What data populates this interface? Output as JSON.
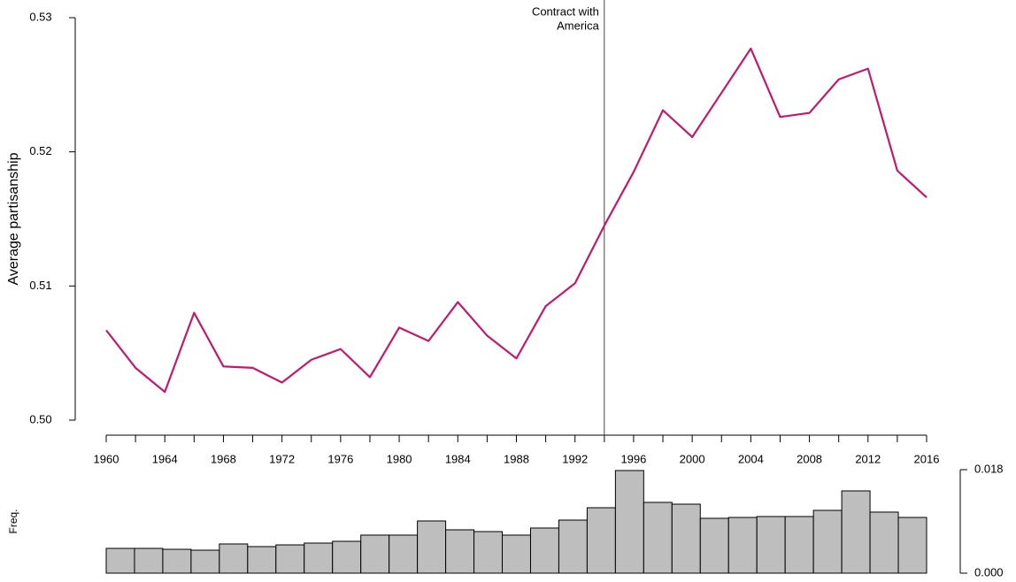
{
  "chart_data": [
    {
      "type": "line",
      "ylabel": "Average partisanship",
      "x": [
        1960,
        1962,
        1964,
        1966,
        1968,
        1970,
        1972,
        1974,
        1976,
        1978,
        1980,
        1982,
        1984,
        1986,
        1988,
        1990,
        1992,
        1994,
        1996,
        1998,
        2000,
        2002,
        2004,
        2006,
        2008,
        2010,
        2012,
        2014,
        2016
      ],
      "series": [
        {
          "color": "#bf1a6e",
          "values": [
            0.5067,
            0.5039,
            0.5021,
            0.508,
            0.504,
            0.5039,
            0.5028,
            0.5045,
            0.5053,
            0.5032,
            0.5069,
            0.5059,
            0.5088,
            0.5063,
            0.5046,
            0.5085,
            0.5102,
            0.5145,
            0.5185,
            0.5231,
            0.5211,
            0.5244,
            0.5277,
            0.5226,
            0.5229,
            0.5254,
            0.5262,
            0.5186,
            0.5166
          ]
        }
      ],
      "xlim": [
        1960,
        2016
      ],
      "xticks": [
        1960,
        1964,
        1968,
        1972,
        1976,
        1980,
        1984,
        1988,
        1992,
        1996,
        2000,
        2004,
        2008,
        2012,
        2016
      ],
      "xticks_minor": [
        1962,
        1966,
        1970,
        1974,
        1978,
        1982,
        1986,
        1990,
        1994,
        1998,
        2002,
        2006,
        2010,
        2014
      ],
      "ylim": [
        0.5,
        0.53
      ],
      "yticks": [
        {
          "value": 0.5,
          "label": "0.50"
        },
        0.51,
        0.52,
        0.53
      ],
      "annotation": {
        "x": 1994,
        "text": [
          "Contract with",
          "America"
        ]
      }
    },
    {
      "type": "bar",
      "ylabel": "Freq.",
      "x": [
        1960,
        1962,
        1964,
        1966,
        1968,
        1970,
        1972,
        1974,
        1976,
        1978,
        1980,
        1982,
        1984,
        1986,
        1988,
        1990,
        1992,
        1994,
        1996,
        1998,
        2000,
        2002,
        2004,
        2006,
        2008,
        2010,
        2012,
        2014,
        2016
      ],
      "values": [
        0.00431,
        0.00431,
        0.00415,
        0.004,
        0.00508,
        0.00462,
        0.00492,
        0.00523,
        0.00554,
        0.00662,
        0.00662,
        0.00908,
        0.00754,
        0.00723,
        0.00662,
        0.00785,
        0.00923,
        0.01138,
        0.01785,
        0.01231,
        0.012,
        0.00954,
        0.00969,
        0.00985,
        0.00985,
        0.01092,
        0.01431,
        0.01062,
        0.00969
      ],
      "color": "#bebebe",
      "xlim": [
        1959,
        2017
      ],
      "ylim": [
        0,
        0.018
      ],
      "yticks": [
        {
          "value": 0,
          "label": "0.000"
        },
        {
          "value": 0.018,
          "label": "0.018"
        }
      ]
    }
  ]
}
